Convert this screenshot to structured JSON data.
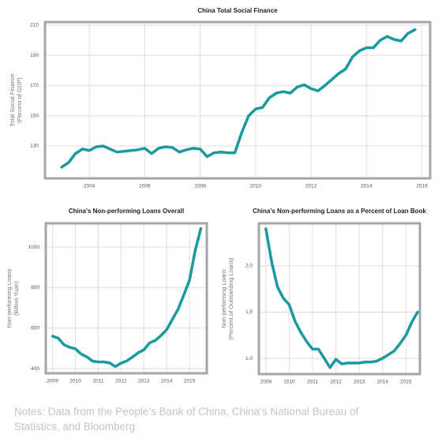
{
  "chart_data": [
    {
      "type": "line",
      "title": "China Total Social Finance",
      "ylabel": [
        "Total Social Finance",
        "(Percent of GDP)"
      ],
      "xlim": [
        2002.4,
        2016.3
      ],
      "xticks": [
        2004,
        2006,
        2008,
        2010,
        2012,
        2014,
        2016
      ],
      "ylim": [
        108.6,
        212
      ],
      "yticks": [
        130,
        150,
        170,
        190,
        210
      ],
      "grid": true,
      "x": [
        2003.0,
        2003.25,
        2003.5,
        2003.75,
        2004.0,
        2004.25,
        2004.5,
        2004.75,
        2005.0,
        2005.25,
        2005.5,
        2005.75,
        2006.0,
        2006.25,
        2006.5,
        2006.75,
        2007.0,
        2007.25,
        2007.5,
        2007.75,
        2008.0,
        2008.25,
        2008.5,
        2008.75,
        2009.0,
        2009.25,
        2009.5,
        2009.75,
        2010.0,
        2010.25,
        2010.5,
        2010.75,
        2011.0,
        2011.25,
        2011.5,
        2011.75,
        2012.0,
        2012.25,
        2012.5,
        2012.75,
        2013.0,
        2013.25,
        2013.5,
        2013.75,
        2014.0,
        2014.25,
        2014.5,
        2014.75,
        2015.0,
        2015.25,
        2015.5,
        2015.75
      ],
      "series": [
        {
          "color": "#1a9a9e",
          "values": [
            116,
            119,
            125,
            128,
            127,
            129.5,
            130,
            128,
            126,
            126.5,
            127,
            127.5,
            128.5,
            125,
            128.5,
            129.5,
            129,
            126,
            127.5,
            128.5,
            128,
            123,
            125.5,
            126,
            125.5,
            125.5,
            139,
            150,
            154.5,
            155.5,
            162,
            165,
            166,
            165,
            169,
            170.5,
            168,
            166.5,
            170,
            174,
            178,
            181,
            189,
            193,
            195,
            195,
            200,
            202.5,
            200.5,
            199.5,
            204.5,
            207
          ]
        }
      ]
    },
    {
      "type": "line",
      "title": "China's Non-performing Loans Overall",
      "ylabel": [
        "Non-performing Loans",
        "(Billion Yuan)"
      ],
      "xlim": [
        2008.7,
        2015.76
      ],
      "xticks": [
        2009,
        2010,
        2011,
        2012,
        2013,
        2014,
        2015
      ],
      "ylim": [
        377,
        1117
      ],
      "yticks": [
        400,
        600,
        800,
        1000
      ],
      "grid": true,
      "x": [
        2009.0,
        2009.25,
        2009.5,
        2009.75,
        2010.0,
        2010.25,
        2010.5,
        2010.75,
        2011.0,
        2011.25,
        2011.5,
        2011.75,
        2012.0,
        2012.25,
        2012.5,
        2012.75,
        2013.0,
        2013.25,
        2013.5,
        2013.75,
        2014.0,
        2014.25,
        2014.5,
        2014.75,
        2015.0,
        2015.25,
        2015.5
      ],
      "series": [
        {
          "color": "#1a9a9e",
          "values": [
            560,
            550,
            518,
            505,
            498,
            472,
            458,
            437,
            433,
            433,
            428,
            410,
            427,
            438,
            457,
            478,
            493,
            527,
            539,
            563,
            592,
            643,
            693,
            763,
            836,
            982,
            1092
          ]
        }
      ]
    },
    {
      "type": "line",
      "title": "China's Non-performing Loans as a Percent of Loan Book",
      "ylabel": [
        "Non-performing Loans",
        "(Percent of Outstanding Loans)"
      ],
      "xlim": [
        2008.7,
        2015.6
      ],
      "xticks": [
        2009,
        2010,
        2011,
        2012,
        2013,
        2014,
        2015
      ],
      "ylim": [
        0.83,
        2.46
      ],
      "yticks": [
        {
          "value": 1,
          "label": "1.0"
        },
        {
          "value": 1.5,
          "label": "1.5"
        },
        {
          "value": 2,
          "label": "2.0"
        }
      ],
      "grid": true,
      "x": [
        2009.0,
        2009.25,
        2009.5,
        2009.75,
        2010.0,
        2010.25,
        2010.5,
        2010.75,
        2011.0,
        2011.25,
        2011.5,
        2011.75,
        2012.0,
        2012.25,
        2012.5,
        2012.75,
        2013.0,
        2013.25,
        2013.5,
        2013.75,
        2014.0,
        2014.25,
        2014.5,
        2014.75,
        2015.0,
        2015.25,
        2015.5
      ],
      "series": [
        {
          "color": "#1a9a9e",
          "values": [
            2.4,
            2.04,
            1.77,
            1.65,
            1.58,
            1.4,
            1.28,
            1.18,
            1.1,
            1.1,
            1.0,
            0.9,
            0.99,
            0.94,
            0.95,
            0.95,
            0.95,
            0.96,
            0.96,
            0.97,
            1.0,
            1.04,
            1.08,
            1.16,
            1.25,
            1.39,
            1.5
          ]
        }
      ]
    }
  ],
  "note": "Notes: Data from the People’s Bank of China, China’s National Bureau of Statistics, and Bloomberg"
}
